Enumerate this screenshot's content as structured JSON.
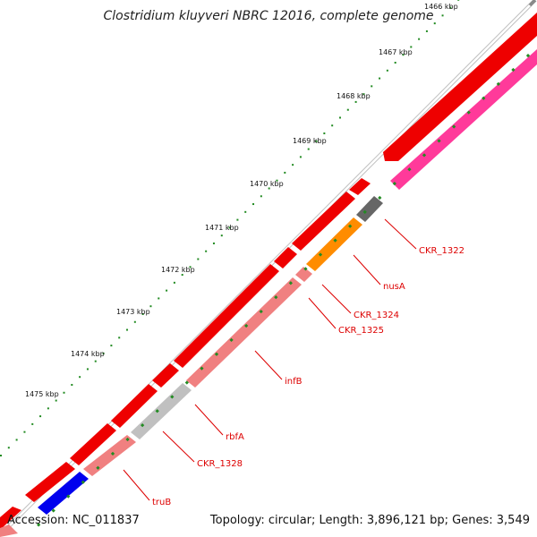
{
  "title": "Clostridium kluyveri NBRC 12016, complete genome",
  "footer": {
    "accession": "Accession: NC_011837",
    "summary": "Topology: circular; Length: 3,896,121 bp; Genes: 3,549"
  },
  "colors": {
    "backbone": "#8a8a8a",
    "forward_cds": "#ff0000",
    "pseudo_pink": "#ff3a9a",
    "gray_gene": "#666666",
    "orange_gene": "#ff8c00",
    "salmon_gene": "#f08080",
    "light_gray_gene": "#c0c0c0",
    "blue_gene": "#0000ee",
    "tick_color": "#228b22",
    "label_color": "#dd0000"
  },
  "ticks": [
    {
      "label": "1466 kbp"
    },
    {
      "label": "1467 kbp"
    },
    {
      "label": "1468 kbp"
    },
    {
      "label": "1469 kbp"
    },
    {
      "label": "1470 kbp"
    },
    {
      "label": "1471 kbp"
    },
    {
      "label": "1472 kbp"
    },
    {
      "label": "1473 kbp"
    },
    {
      "label": "1474 kbp"
    },
    {
      "label": "1475 kbp"
    }
  ],
  "gene_labels": [
    {
      "name": "CKR_1322"
    },
    {
      "name": "nusA"
    },
    {
      "name": "CKR_1324"
    },
    {
      "name": "CKR_1325"
    },
    {
      "name": "infB"
    },
    {
      "name": "rbfA"
    },
    {
      "name": "CKR_1328"
    },
    {
      "name": "truB"
    }
  ]
}
